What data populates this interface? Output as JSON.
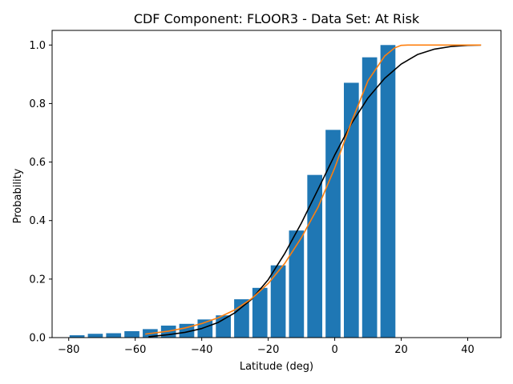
{
  "chart_data": {
    "type": "bar",
    "title": "CDF Component: FLOOR3 - Data Set: At Risk",
    "xlabel": "Latitude (deg)",
    "ylabel": "Probability",
    "xlim": [
      -85,
      50
    ],
    "ylim": [
      0,
      1.05
    ],
    "xticks": [
      -80,
      -60,
      -40,
      -20,
      0,
      20,
      40
    ],
    "yticks": [
      0.0,
      0.2,
      0.4,
      0.6,
      0.8,
      1.0
    ],
    "xtick_labels": [
      "−80",
      "−60",
      "−40",
      "−20",
      "0",
      "20",
      "40"
    ],
    "ytick_labels": [
      "0.0",
      "0.2",
      "0.4",
      "0.6",
      "0.8",
      "1.0"
    ],
    "grid": false,
    "bar_width": 4.5,
    "bars": {
      "x": [
        -77.5,
        -72,
        -66.5,
        -61,
        -55.5,
        -50,
        -44.5,
        -39,
        -33.5,
        -28,
        -22.5,
        -17,
        -11.5,
        -6,
        -0.5,
        5,
        10.5,
        16
      ],
      "values": [
        0.008,
        0.013,
        0.015,
        0.022,
        0.029,
        0.041,
        0.047,
        0.062,
        0.076,
        0.131,
        0.17,
        0.247,
        0.366,
        0.556,
        0.71,
        0.871,
        0.958,
        1.0
      ],
      "color": "#1f77b4"
    },
    "series": [
      {
        "type": "line",
        "color": "#000000",
        "x": [
          -56,
          -50,
          -45,
          -40,
          -35,
          -30,
          -25,
          -20,
          -15,
          -10,
          -5,
          0,
          5,
          10,
          15,
          20,
          25,
          30,
          35,
          40,
          44
        ],
        "values": [
          0.003,
          0.01,
          0.018,
          0.031,
          0.052,
          0.085,
          0.131,
          0.198,
          0.288,
          0.392,
          0.507,
          0.624,
          0.731,
          0.819,
          0.886,
          0.935,
          0.968,
          0.986,
          0.995,
          0.999,
          1.0
        ]
      },
      {
        "type": "line",
        "color": "#ff7f0e",
        "x": [
          -57,
          -50,
          -45,
          -40,
          -35,
          -30,
          -25,
          -20,
          -15,
          -10,
          -5,
          0,
          5,
          10,
          15,
          18,
          20,
          22,
          25,
          30,
          35,
          40,
          44
        ],
        "values": [
          0.012,
          0.022,
          0.033,
          0.048,
          0.068,
          0.095,
          0.133,
          0.185,
          0.254,
          0.342,
          0.446,
          0.58,
          0.736,
          0.878,
          0.962,
          0.99,
          0.999,
          1.0,
          1.0,
          1.0,
          1.0,
          1.0,
          1.0
        ]
      }
    ]
  }
}
